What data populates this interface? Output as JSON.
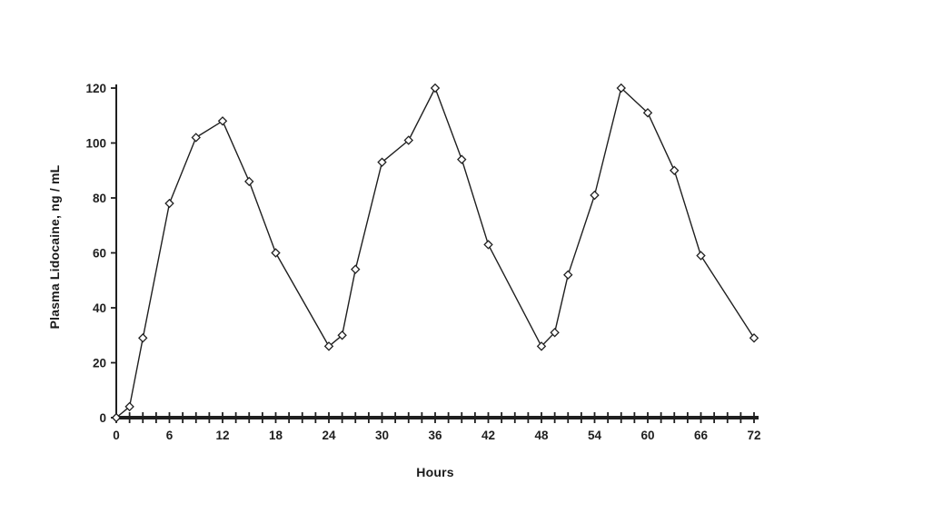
{
  "page": {
    "background": "#ffffff",
    "ink_color": "#1f1f1f"
  },
  "chart_data": {
    "type": "line",
    "xlabel": "Hours",
    "ylabel": "Plasma Lidocaine, ng / mL",
    "xlim": [
      0,
      72
    ],
    "ylim": [
      0,
      120
    ],
    "x_major_ticks": [
      0,
      6,
      12,
      18,
      24,
      30,
      36,
      42,
      48,
      54,
      60,
      66,
      72
    ],
    "x_minor_tick_step": 1.5,
    "y_ticks": [
      0,
      20,
      40,
      60,
      80,
      100,
      120
    ],
    "grid": false,
    "legend_position": "none",
    "line_color": "#1f1f1f",
    "marker": "open-diamond",
    "marker_fill": "#ffffff",
    "series": [
      {
        "name": "Plasma Lidocaine",
        "points": [
          [
            0,
            0
          ],
          [
            1.5,
            4
          ],
          [
            3,
            29
          ],
          [
            6,
            78
          ],
          [
            9,
            102
          ],
          [
            12,
            108
          ],
          [
            15,
            86
          ],
          [
            18,
            60
          ],
          [
            24,
            26
          ],
          [
            25.5,
            30
          ],
          [
            27,
            54
          ],
          [
            30,
            93
          ],
          [
            33,
            101
          ],
          [
            36,
            120
          ],
          [
            39,
            94
          ],
          [
            42,
            63
          ],
          [
            48,
            26
          ],
          [
            49.5,
            31
          ],
          [
            51,
            52
          ],
          [
            54,
            81
          ],
          [
            57,
            120
          ],
          [
            60,
            111
          ],
          [
            63,
            90
          ],
          [
            66,
            59
          ],
          [
            72,
            29
          ]
        ]
      }
    ]
  }
}
